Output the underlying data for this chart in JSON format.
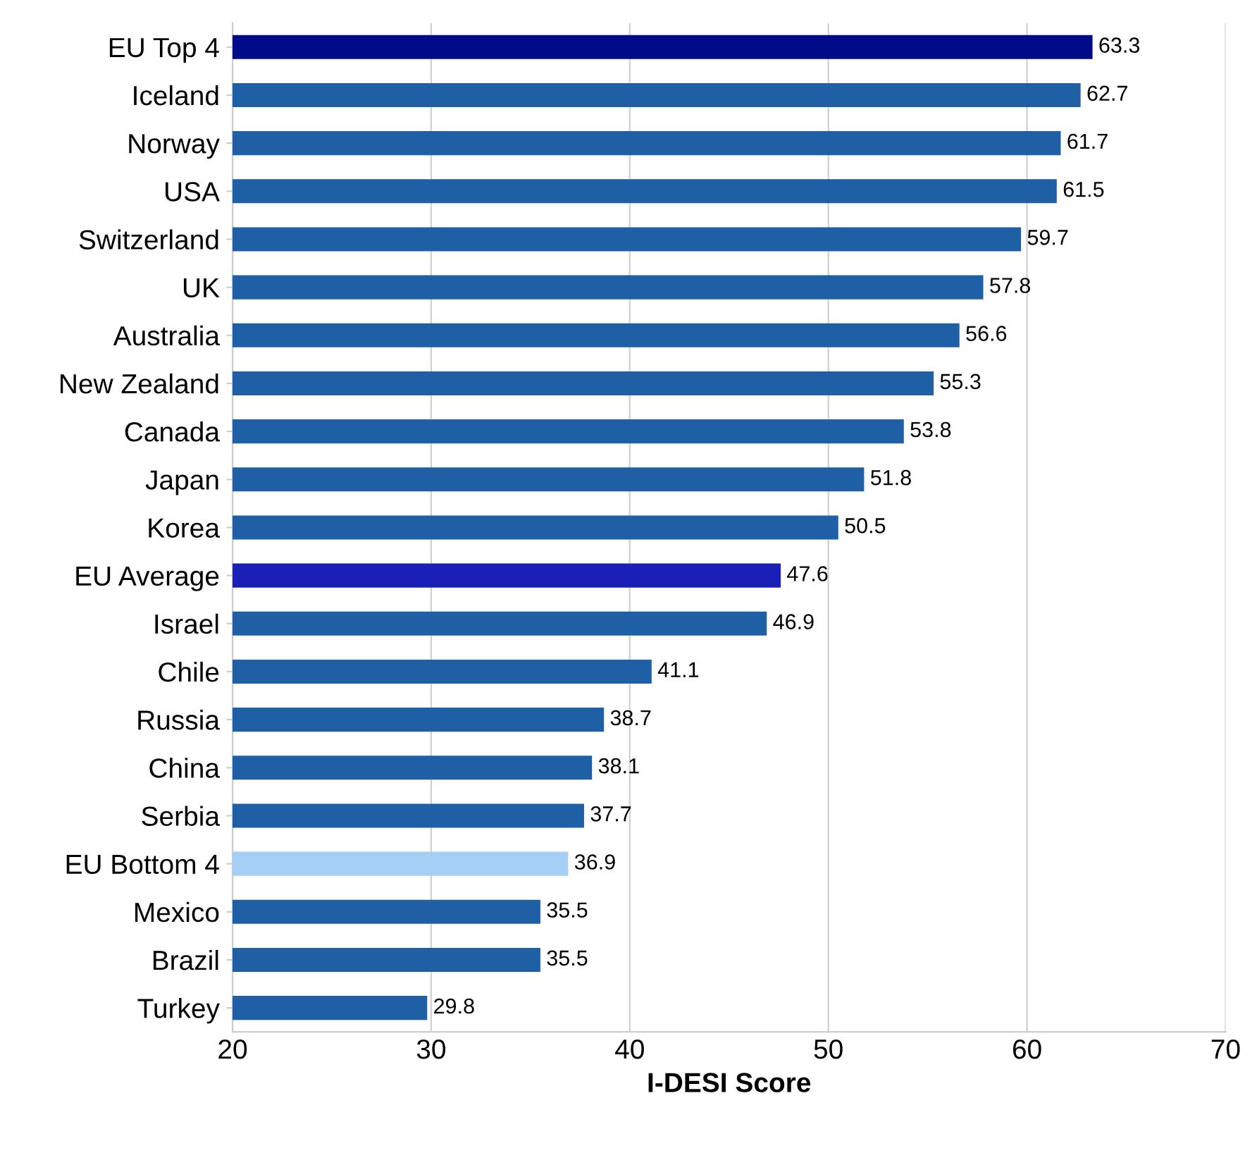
{
  "chart_data": {
    "type": "bar",
    "orientation": "horizontal",
    "xlabel": "I-DESI Score",
    "categories": [
      "EU Top 4",
      "Iceland",
      "Norway",
      "USA",
      "Switzerland",
      "UK",
      "Australia",
      "New Zealand",
      "Canada",
      "Japan",
      "Korea",
      "EU Average",
      "Israel",
      "Chile",
      "Russia",
      "China",
      "Serbia",
      "EU Bottom 4",
      "Mexico",
      "Brazil",
      "Turkey"
    ],
    "values": [
      63.3,
      62.7,
      61.7,
      61.5,
      59.7,
      57.8,
      56.6,
      55.3,
      53.8,
      51.8,
      50.5,
      47.6,
      46.9,
      41.1,
      38.7,
      38.1,
      37.7,
      36.9,
      35.5,
      35.5,
      29.8
    ],
    "colors": [
      "#000b8a",
      "#1f5fa6",
      "#1f5fa6",
      "#1f5fa6",
      "#1f5fa6",
      "#1f5fa6",
      "#1f5fa6",
      "#1f5fa6",
      "#1f5fa6",
      "#1f5fa6",
      "#1f5fa6",
      "#1a1fb8",
      "#1f5fa6",
      "#1f5fa6",
      "#1f5fa6",
      "#1f5fa6",
      "#1f5fa6",
      "#a6cff5",
      "#1f5fa6",
      "#1f5fa6",
      "#1f5fa6"
    ],
    "xlim": [
      20,
      70
    ],
    "xticks": [
      20,
      30,
      40,
      50,
      60,
      70
    ],
    "grid": "x",
    "data_labels": true
  }
}
